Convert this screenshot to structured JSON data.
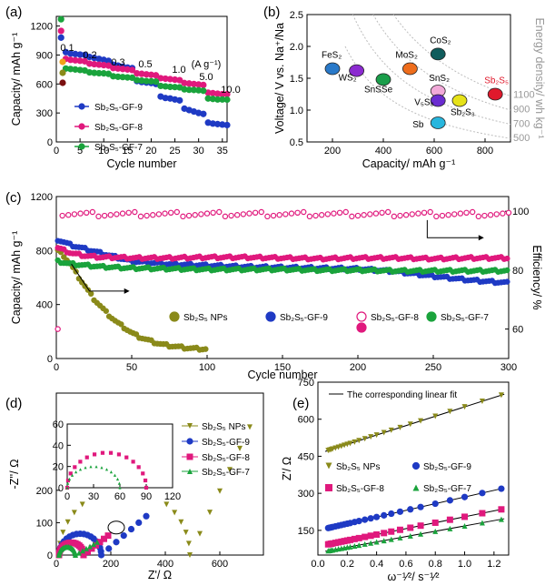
{
  "chart_data": [
    {
      "panel": "(a)",
      "type": "scatter",
      "xlabel": "Cycle number",
      "ylabel": "Capacity/ mAh g⁻¹",
      "xlim": [
        0,
        36
      ],
      "ylim": [
        0,
        1300
      ],
      "xticks": [
        "0",
        "5",
        "10",
        "15",
        "20",
        "25",
        "30",
        "35"
      ],
      "yticks": [
        "0",
        "300",
        "600",
        "900",
        "1200"
      ],
      "rate_labels": [
        "0.1",
        "0.2",
        "0.3",
        "0.5",
        "1.0",
        "5.0",
        "10.0"
      ],
      "rate_unit": "(A g⁻¹)",
      "series": [
        {
          "name": "Sb₂S₅-GF-9",
          "color": "#1f3ac4",
          "marker": "circle",
          "values": [
            1080,
            930,
            915,
            910,
            905,
            900,
            880,
            870,
            860,
            850,
            840,
            800,
            790,
            780,
            770,
            765,
            630,
            620,
            615,
            610,
            600,
            470,
            455,
            450,
            440,
            430,
            345,
            330,
            315,
            300,
            290,
            200,
            190,
            185,
            180,
            175
          ]
        },
        {
          "name": "Sb₂S₅-GF-8",
          "color": "#e0197d",
          "marker": "circle",
          "values": [
            1150,
            860,
            850,
            845,
            840,
            835,
            810,
            805,
            800,
            795,
            790,
            765,
            760,
            755,
            750,
            745,
            710,
            705,
            700,
            695,
            690,
            660,
            655,
            650,
            645,
            640,
            610,
            605,
            600,
            595,
            590,
            510,
            505,
            500,
            495,
            495
          ]
        },
        {
          "name": "Sb₂S₅-GF-7",
          "color": "#1aa33c",
          "marker": "circle",
          "values": [
            1270,
            760,
            755,
            750,
            745,
            740,
            720,
            715,
            712,
            710,
            705,
            680,
            675,
            672,
            668,
            665,
            640,
            635,
            630,
            628,
            625,
            580,
            575,
            570,
            568,
            565,
            545,
            540,
            538,
            535,
            530,
            450,
            445,
            440,
            440,
            438
          ]
        }
      ],
      "legend_extra_colors": [
        "#f0a21a",
        "#8a8a1a",
        "#7a1010"
      ]
    },
    {
      "panel": "(b)",
      "type": "scatter",
      "xlabel": "Capacity/ mAh g⁻¹",
      "ylabel": "Voltage/ V vs. Na⁺/Na",
      "right_label": "Energy density/ wh kg⁻¹",
      "xlim": [
        100,
        900
      ],
      "ylim": [
        0.5,
        2.5
      ],
      "xticks": [
        "200",
        "400",
        "600",
        "800"
      ],
      "yticks": [
        "0.5",
        "1.0",
        "1.5",
        "2.0",
        "2.5"
      ],
      "energy_contours": [
        "500",
        "700",
        "900",
        "1100"
      ],
      "points": [
        {
          "label": "FeS₂",
          "x": 200,
          "y": 1.65,
          "color": "#2979c9"
        },
        {
          "label": "WS₂",
          "x": 295,
          "y": 1.62,
          "color": "#8b2bd0"
        },
        {
          "label": "SnSSe",
          "x": 400,
          "y": 1.48,
          "color": "#1a9e4a"
        },
        {
          "label": "MoS₂",
          "x": 505,
          "y": 1.65,
          "color": "#ee6d1c"
        },
        {
          "label": "CoS₂",
          "x": 615,
          "y": 1.88,
          "color": "#0f5c5c"
        },
        {
          "label": "SnS₂",
          "x": 615,
          "y": 1.3,
          "color": "#f1a9d8"
        },
        {
          "label": "V₅S₈",
          "x": 615,
          "y": 1.15,
          "color": "#6a2cd0"
        },
        {
          "label": "Sb₂S₃",
          "x": 700,
          "y": 1.15,
          "color": "#e6e218"
        },
        {
          "label": "Sb",
          "x": 615,
          "y": 0.8,
          "color": "#28b6dd"
        },
        {
          "label": "Sb₂S₅",
          "x": 840,
          "y": 1.25,
          "color": "#e0192c"
        }
      ]
    },
    {
      "panel": "(c)",
      "type": "scatter",
      "xlabel": "Cycle number",
      "ylabel": "Capacity/ mAh g⁻¹",
      "y2label": "Efficiency/ %",
      "xlim": [
        0,
        300
      ],
      "ylim": [
        0,
        1200
      ],
      "y2lim": [
        50,
        105
      ],
      "xticks": [
        "0",
        "50",
        "100",
        "150",
        "200",
        "250",
        "300"
      ],
      "yticks": [
        "0",
        "400",
        "800",
        "1200"
      ],
      "y2ticks": [
        "60",
        "80",
        "100"
      ],
      "series": [
        {
          "name": "Sb₂S₅ NPs",
          "color": "#8a8a1a",
          "x": [
            1,
            5,
            10,
            15,
            20,
            25,
            30,
            35,
            40,
            45,
            50,
            55,
            60,
            65,
            70,
            75,
            80,
            85,
            90,
            95,
            99
          ],
          "values": [
            800,
            760,
            690,
            600,
            520,
            440,
            380,
            320,
            270,
            230,
            190,
            160,
            140,
            120,
            105,
            95,
            88,
            80,
            75,
            72,
            70
          ]
        },
        {
          "name": "Sb₂S₅-GF-9",
          "color": "#1f3ac4",
          "x": [
            1,
            10,
            20,
            30,
            40,
            50,
            75,
            100,
            125,
            150,
            175,
            200,
            225,
            250,
            275,
            300
          ],
          "values": [
            880,
            840,
            810,
            780,
            750,
            720,
            700,
            690,
            680,
            675,
            670,
            665,
            645,
            610,
            580,
            560
          ]
        },
        {
          "name": "Sb₂S₅-GF-8",
          "color": "#e0197d",
          "x": [
            1,
            10,
            20,
            30,
            40,
            50,
            75,
            100,
            125,
            150,
            175,
            200,
            225,
            250,
            275,
            300
          ],
          "values": [
            820,
            780,
            760,
            750,
            750,
            745,
            745,
            750,
            750,
            745,
            740,
            745,
            745,
            740,
            745,
            745
          ]
        },
        {
          "name": "Sb₂S₅-GF-7",
          "color": "#1aa33c",
          "x": [
            1,
            10,
            20,
            30,
            40,
            50,
            75,
            100,
            125,
            150,
            175,
            200,
            225,
            250,
            275,
            300
          ],
          "values": [
            720,
            700,
            690,
            680,
            675,
            670,
            665,
            660,
            660,
            660,
            655,
            655,
            650,
            650,
            650,
            650
          ]
        }
      ],
      "efficiency": {
        "first_value": 60,
        "stable_value": 99
      },
      "legend": [
        "Sb₂S₅ NPs",
        "Sb₂S₅-GF-9",
        "Sb₂S₅-GF-8",
        "Sb₂S₅-GF-7"
      ]
    },
    {
      "panel": "(d)",
      "type": "scatter",
      "xlabel": "Z'/ Ω",
      "ylabel": "-Z''/ Ω",
      "xlim": [
        0,
        760
      ],
      "ylim": [
        0,
        500
      ],
      "xticks": [
        "0",
        "200",
        "400",
        "600"
      ],
      "yticks": [
        "0",
        "100",
        "200"
      ],
      "series": [
        {
          "name": "Sb₂S₅ NPs",
          "color": "#8a8a1a",
          "arc_diameter": 480,
          "tail_end": [
            710,
            395
          ]
        },
        {
          "name": "Sb₂S₅-GF-9",
          "color": "#1f3ac4",
          "arc_diameter": 155,
          "tail_end": [
            330,
            120
          ]
        },
        {
          "name": "Sb₂S₅-GF-8",
          "color": "#e0197d",
          "arc_diameter": 90,
          "tail_end": [
            190,
            60
          ]
        },
        {
          "name": "Sb₂S₅-GF-7",
          "color": "#1aa33c",
          "arc_diameter": 60,
          "tail_end": [
            150,
            40
          ]
        }
      ],
      "inset": {
        "xticks": [
          "0",
          "30",
          "60",
          "90",
          "120"
        ],
        "yticks": [
          "0",
          "20",
          "40",
          "60"
        ]
      }
    },
    {
      "panel": "(e)",
      "type": "scatter",
      "xlabel": "ω⁻¹⁄²/ s⁻¹⁄²",
      "ylabel": "Z'/ Ω",
      "xlim": [
        0,
        1.3
      ],
      "ylim": [
        50,
        750
      ],
      "xticks": [
        "0.0",
        "0.2",
        "0.4",
        "0.6",
        "0.8",
        "1.0",
        "1.2"
      ],
      "yticks": [
        "150",
        "300",
        "450",
        "600",
        "750"
      ],
      "fit_label": "The corresponding linear fit",
      "series": [
        {
          "name": "Sb₂S₅ NPs",
          "color": "#8a8a1a",
          "intercept": 460,
          "slope": 190
        },
        {
          "name": "Sb₂S₅-GF-9",
          "color": "#1f3ac4",
          "intercept": 150,
          "slope": 135
        },
        {
          "name": "Sb₂S₅-GF-8",
          "color": "#e0197d",
          "intercept": 85,
          "slope": 120
        },
        {
          "name": "Sb₂S₅-GF-7",
          "color": "#1aa33c",
          "intercept": 60,
          "slope": 108
        }
      ]
    }
  ]
}
